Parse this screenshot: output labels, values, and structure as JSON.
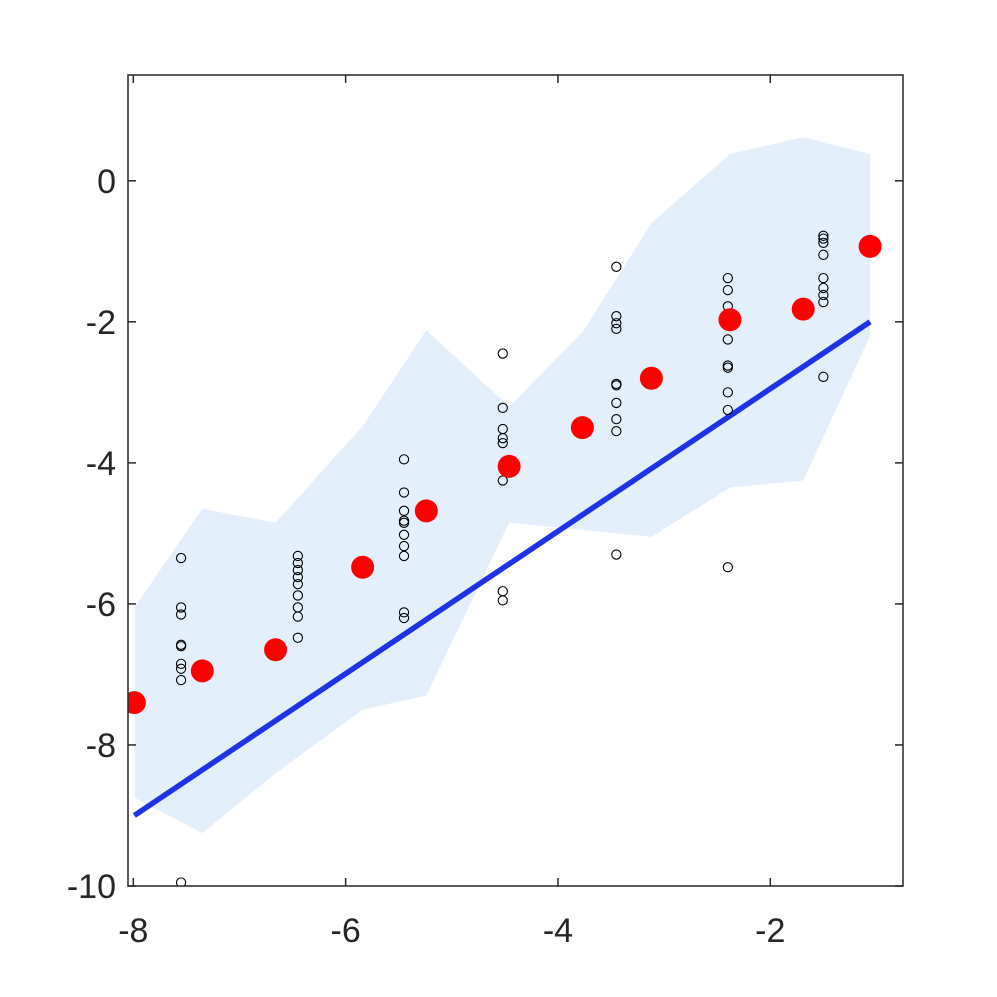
{
  "chart_data": {
    "type": "scatter",
    "title": "",
    "xlabel": "",
    "ylabel": "",
    "xlim": [
      -8.05,
      -0.75
    ],
    "ylim": [
      -10,
      1.5
    ],
    "xticks": [
      -8,
      -6,
      -4,
      -2
    ],
    "yticks": [
      -10,
      -8,
      -6,
      -4,
      -2,
      0
    ],
    "xtick_labels": [
      "-8",
      "-6",
      "-4",
      "-2"
    ],
    "ytick_labels": [
      "-10",
      "-8",
      "-6",
      "-4",
      "-2",
      "0"
    ],
    "grid": false,
    "legend": false,
    "series": [
      {
        "kind": "band",
        "color": "#e3f0fc",
        "upper": [
          [
            -7.99,
            -6.05
          ],
          [
            -7.35,
            -4.65
          ],
          [
            -6.66,
            -4.85
          ],
          [
            -5.84,
            -3.48
          ],
          [
            -5.24,
            -2.12
          ],
          [
            -4.46,
            -3.2
          ],
          [
            -3.77,
            -2.15
          ],
          [
            -3.12,
            -0.6
          ],
          [
            -2.38,
            0.38
          ],
          [
            -1.69,
            0.62
          ],
          [
            -1.06,
            0.38
          ]
        ],
        "lower": [
          [
            -7.99,
            -8.75
          ],
          [
            -7.35,
            -9.25
          ],
          [
            -6.66,
            -8.4
          ],
          [
            -5.84,
            -7.5
          ],
          [
            -5.24,
            -7.3
          ],
          [
            -4.46,
            -4.85
          ],
          [
            -3.77,
            -4.95
          ],
          [
            -3.12,
            -5.05
          ],
          [
            -2.38,
            -4.35
          ],
          [
            -1.69,
            -4.25
          ],
          [
            -1.06,
            -2.2
          ]
        ]
      },
      {
        "kind": "line",
        "color": "#1f33e6",
        "points": [
          [
            -7.99,
            -9.0
          ],
          [
            -1.06,
            -2.0
          ]
        ]
      },
      {
        "kind": "scatter-open",
        "color": "#000000",
        "points": [
          [
            -7.55,
            -5.35
          ],
          [
            -7.55,
            -6.05
          ],
          [
            -7.55,
            -6.15
          ],
          [
            -7.55,
            -6.58
          ],
          [
            -7.55,
            -6.6
          ],
          [
            -7.55,
            -6.85
          ],
          [
            -7.55,
            -6.92
          ],
          [
            -7.55,
            -7.08
          ],
          [
            -7.55,
            -9.95
          ],
          [
            -6.45,
            -5.32
          ],
          [
            -6.45,
            -5.42
          ],
          [
            -6.45,
            -5.52
          ],
          [
            -6.45,
            -5.62
          ],
          [
            -6.45,
            -5.72
          ],
          [
            -6.45,
            -5.88
          ],
          [
            -6.45,
            -6.05
          ],
          [
            -6.45,
            -6.18
          ],
          [
            -6.45,
            -6.48
          ],
          [
            -5.45,
            -3.95
          ],
          [
            -5.45,
            -4.42
          ],
          [
            -5.45,
            -4.68
          ],
          [
            -5.45,
            -4.82
          ],
          [
            -5.45,
            -4.85
          ],
          [
            -5.45,
            -5.02
          ],
          [
            -5.45,
            -5.18
          ],
          [
            -5.45,
            -5.32
          ],
          [
            -5.45,
            -6.12
          ],
          [
            -5.45,
            -6.2
          ],
          [
            -4.52,
            -2.45
          ],
          [
            -4.52,
            -3.22
          ],
          [
            -4.52,
            -3.52
          ],
          [
            -4.52,
            -3.65
          ],
          [
            -4.52,
            -3.72
          ],
          [
            -4.52,
            -4.25
          ],
          [
            -4.52,
            -5.82
          ],
          [
            -4.52,
            -5.95
          ],
          [
            -3.45,
            -1.22
          ],
          [
            -3.45,
            -1.92
          ],
          [
            -3.45,
            -2.02
          ],
          [
            -3.45,
            -2.1
          ],
          [
            -3.45,
            -2.88
          ],
          [
            -3.45,
            -2.9
          ],
          [
            -3.45,
            -3.15
          ],
          [
            -3.45,
            -3.38
          ],
          [
            -3.45,
            -3.55
          ],
          [
            -3.45,
            -5.3
          ],
          [
            -2.4,
            -1.38
          ],
          [
            -2.4,
            -1.55
          ],
          [
            -2.4,
            -1.78
          ],
          [
            -2.4,
            -2.02
          ],
          [
            -2.4,
            -2.25
          ],
          [
            -2.4,
            -2.62
          ],
          [
            -2.4,
            -2.65
          ],
          [
            -2.4,
            -3.0
          ],
          [
            -2.4,
            -3.25
          ],
          [
            -2.4,
            -5.48
          ],
          [
            -1.5,
            -0.78
          ],
          [
            -1.5,
            -0.82
          ],
          [
            -1.5,
            -0.88
          ],
          [
            -1.5,
            -1.05
          ],
          [
            -1.5,
            -1.38
          ],
          [
            -1.5,
            -1.52
          ],
          [
            -1.5,
            -1.62
          ],
          [
            -1.5,
            -1.72
          ],
          [
            -1.5,
            -2.78
          ]
        ]
      },
      {
        "kind": "scatter-filled",
        "color": "#ff0000",
        "points": [
          [
            -7.99,
            -7.4
          ],
          [
            -7.35,
            -6.95
          ],
          [
            -6.66,
            -6.65
          ],
          [
            -5.84,
            -5.48
          ],
          [
            -5.24,
            -4.68
          ],
          [
            -4.46,
            -4.05
          ],
          [
            -3.77,
            -3.5
          ],
          [
            -3.12,
            -2.8
          ],
          [
            -2.38,
            -1.97
          ],
          [
            -1.69,
            -1.82
          ],
          [
            -1.06,
            -0.93
          ]
        ]
      }
    ]
  }
}
